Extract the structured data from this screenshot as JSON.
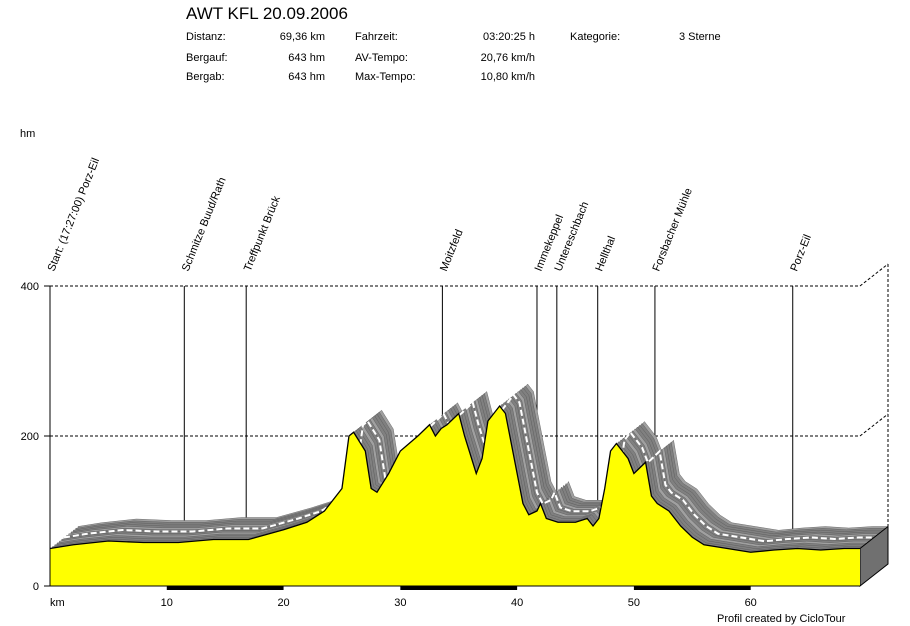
{
  "header": {
    "title": "AWT KFL 20.09.2006",
    "stats": [
      {
        "label": "Distanz:",
        "value": "69,36 km"
      },
      {
        "label": "Bergauf:",
        "value": "643 hm"
      },
      {
        "label": "Bergab:",
        "value": "643 hm"
      },
      {
        "label": "Fahrzeit:",
        "value": "03:20:25 h"
      },
      {
        "label": "AV-Tempo:",
        "value": "20,76 km/h"
      },
      {
        "label": "Max-Tempo:",
        "value": "10,80 km/h"
      },
      {
        "label": "Kategorie:",
        "value": "3 Sterne"
      }
    ]
  },
  "footer": "Profil created by CicloTour",
  "chart_data": {
    "type": "area",
    "title": "AWT KFL 20.09.2006",
    "xlabel": "km",
    "ylabel": "hm",
    "xlim": [
      0,
      69.36
    ],
    "ylim": [
      0,
      400
    ],
    "xticks": [
      0,
      10,
      20,
      30,
      40,
      50,
      60
    ],
    "xtick_labels": [
      "km",
      "10",
      "20",
      "30",
      "40",
      "50",
      "60"
    ],
    "yticks": [
      0,
      200,
      400
    ],
    "grid": true,
    "colors": {
      "fill": "#ffff00",
      "shadow": "#808080",
      "line": "#000000"
    },
    "waypoints": [
      {
        "km": 0,
        "label": "Start: (17:27:00) Porz-Eil"
      },
      {
        "km": 11.5,
        "label": "Schmitze Buud/Rath"
      },
      {
        "km": 16.8,
        "label": "Treffpunkt Brück"
      },
      {
        "km": 33.6,
        "label": "Moitzfeld"
      },
      {
        "km": 41.7,
        "label": "Immekeppel"
      },
      {
        "km": 43.4,
        "label": "Untereschbach"
      },
      {
        "km": 46.9,
        "label": "Hellthal"
      },
      {
        "km": 51.8,
        "label": "Forsbacher Mühle"
      },
      {
        "km": 63.6,
        "label": "Porz-Eil"
      }
    ],
    "x": [
      0,
      2,
      5,
      8,
      11,
      14,
      17,
      20,
      22,
      23.5,
      25,
      25.6,
      26,
      27,
      27.5,
      28,
      29,
      30,
      31.5,
      32.5,
      33,
      33.5,
      34,
      35,
      35.5,
      36.5,
      37,
      37.5,
      38.5,
      39,
      40,
      40.5,
      41,
      41.7,
      42,
      42.5,
      43.5,
      45,
      46,
      46.5,
      47,
      47.5,
      48,
      48.5,
      49.5,
      50,
      51,
      51.5,
      52,
      53,
      54,
      55,
      56,
      58,
      60,
      62,
      64,
      66,
      68,
      69.36
    ],
    "y": [
      50,
      55,
      60,
      58,
      58,
      62,
      62,
      75,
      85,
      100,
      130,
      200,
      205,
      180,
      130,
      125,
      150,
      180,
      200,
      215,
      200,
      210,
      215,
      230,
      200,
      150,
      170,
      220,
      240,
      230,
      150,
      110,
      95,
      100,
      110,
      90,
      85,
      85,
      90,
      80,
      90,
      130,
      180,
      190,
      170,
      150,
      165,
      120,
      110,
      100,
      80,
      65,
      55,
      50,
      45,
      48,
      50,
      48,
      50,
      50
    ]
  }
}
